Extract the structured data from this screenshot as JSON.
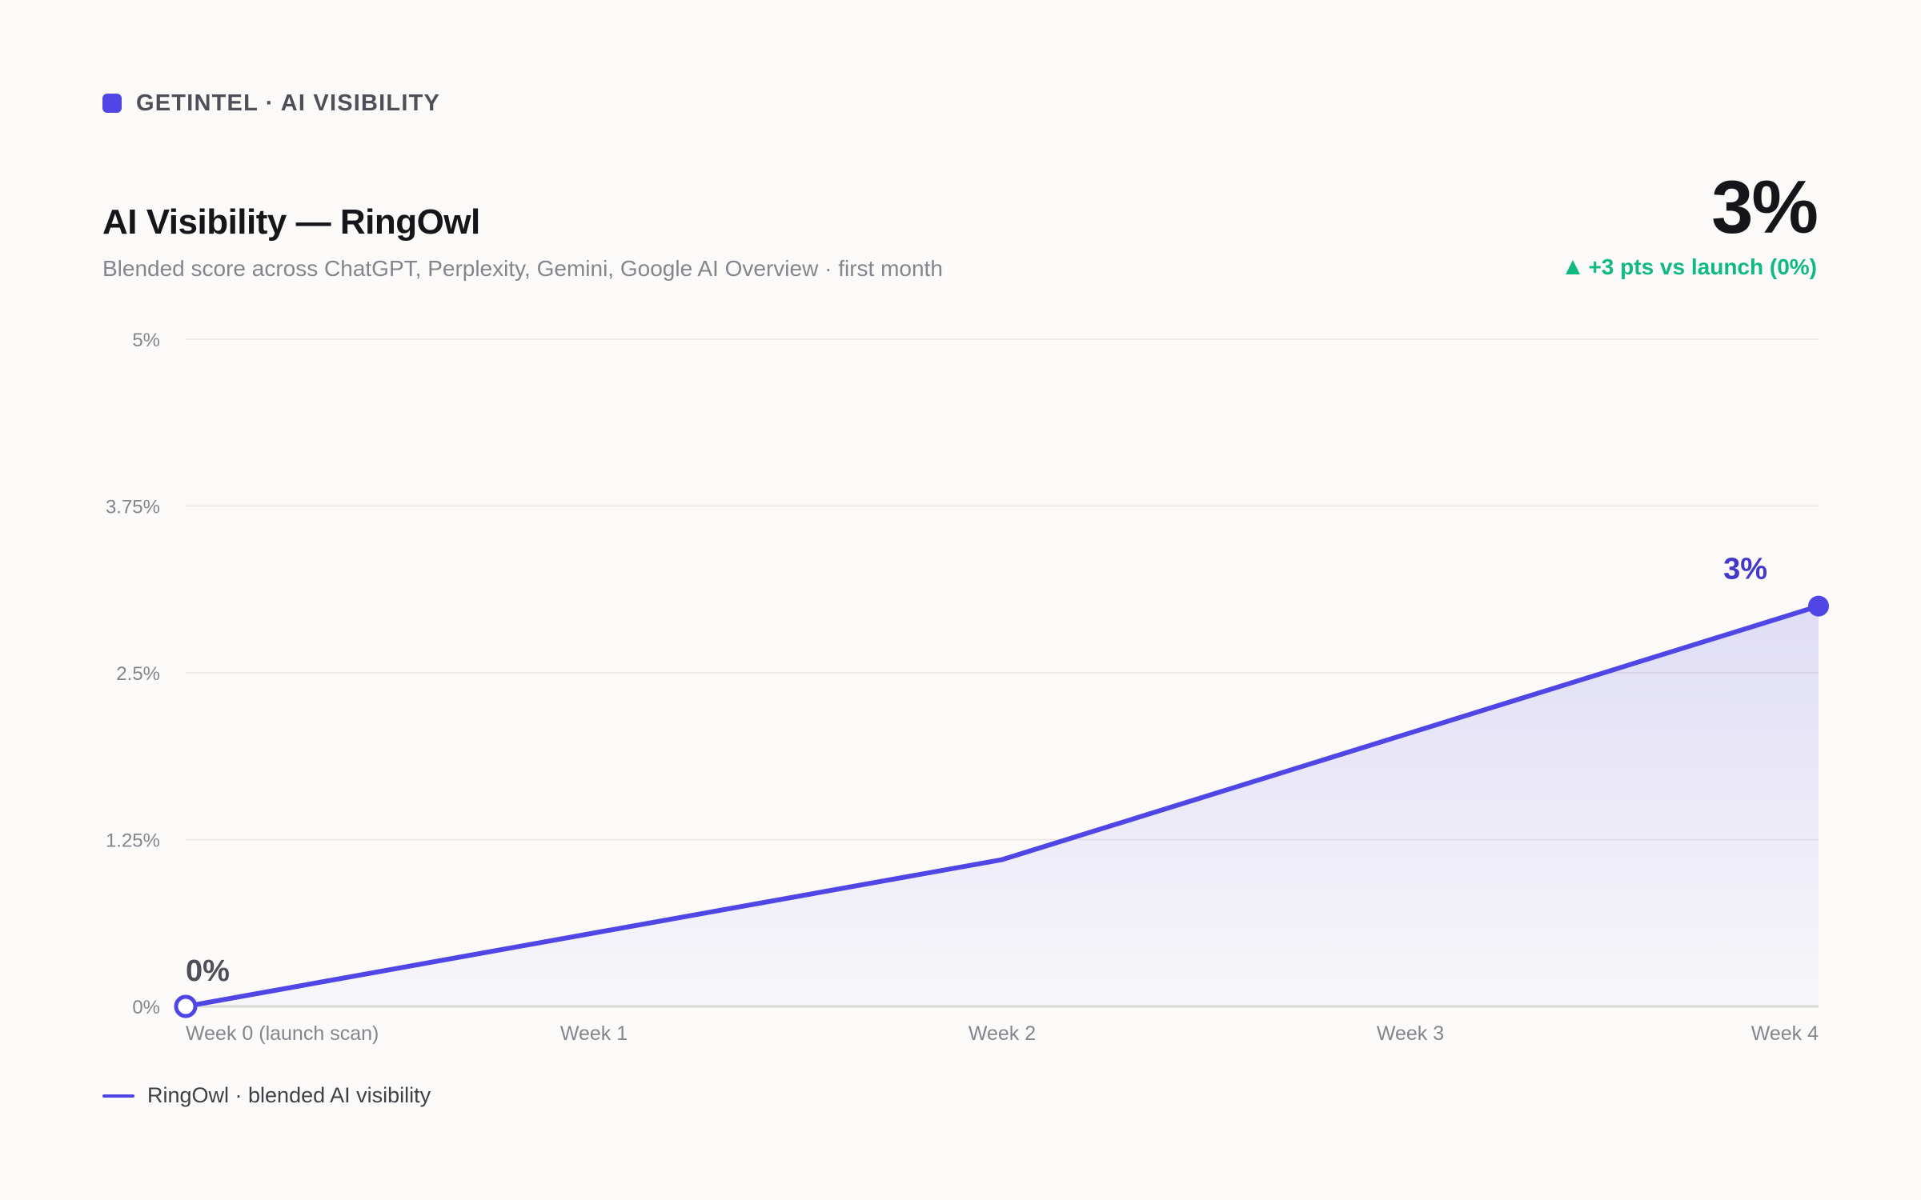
{
  "header": {
    "brand": "GETINTEL · AI VISIBILITY",
    "title": "AI Visibility — RingOwl",
    "subtitle": "Blended score across ChatGPT, Perplexity, Gemini, Google AI Overview · first month",
    "kpi_value": "3%",
    "kpi_delta": "+3 pts vs launch (0%)"
  },
  "colors": {
    "accent": "#4f46e5",
    "positive": "#10b981",
    "grid": "#e8e6e3",
    "axis_text": "#85858d"
  },
  "legend": {
    "label": "RingOwl · blended AI visibility"
  },
  "chart_data": {
    "type": "area",
    "x": [
      "Week 0 (launch scan)",
      "Week 1",
      "Week 2",
      "Week 3",
      "Week 4"
    ],
    "series": [
      {
        "name": "RingOwl · blended AI visibility",
        "values": [
          0,
          0.55,
          1.1,
          2.05,
          3.0
        ]
      }
    ],
    "y_ticks": [
      "5%",
      "3.75%",
      "2.5%",
      "1.25%",
      "0%"
    ],
    "ylim": [
      0,
      5
    ],
    "grid": true,
    "point_labels": [
      {
        "index": 0,
        "text": "0%"
      },
      {
        "index": 4,
        "text": "3%"
      }
    ],
    "legend_position": "bottom-left"
  }
}
